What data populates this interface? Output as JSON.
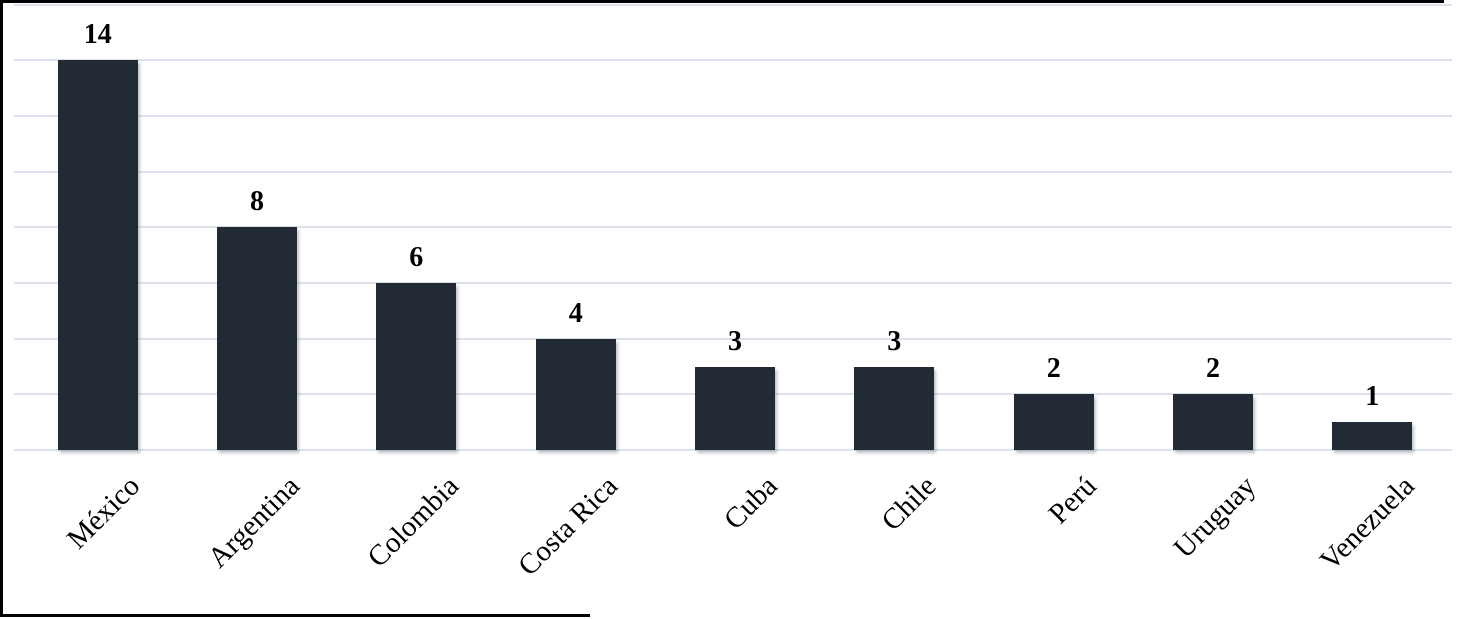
{
  "figure": {
    "background_color": "#ffffff",
    "border_color": "#000000"
  },
  "chart_data": {
    "type": "bar",
    "title": "",
    "categories": [
      "México",
      "Argentina",
      "Colombia",
      "Costa Rica",
      "Cuba",
      "Chile",
      "Perú",
      "Uruguay",
      "Venezuela"
    ],
    "values": [
      14,
      8,
      6,
      4,
      3,
      3,
      2,
      2,
      1
    ],
    "data_labels": [
      "14",
      "8",
      "6",
      "4",
      "3",
      "3",
      "2",
      "2",
      "1"
    ],
    "xlabel": "",
    "ylabel": "",
    "ylim": [
      0,
      16
    ],
    "gridline_step": 2,
    "grid": true,
    "legend": "none",
    "y_axis_tick_labels_visible": false,
    "category_label_rotation_deg": -45,
    "bar_color": "#222a36",
    "gridline_color": "#dce2ec",
    "label_color": "#000000"
  }
}
